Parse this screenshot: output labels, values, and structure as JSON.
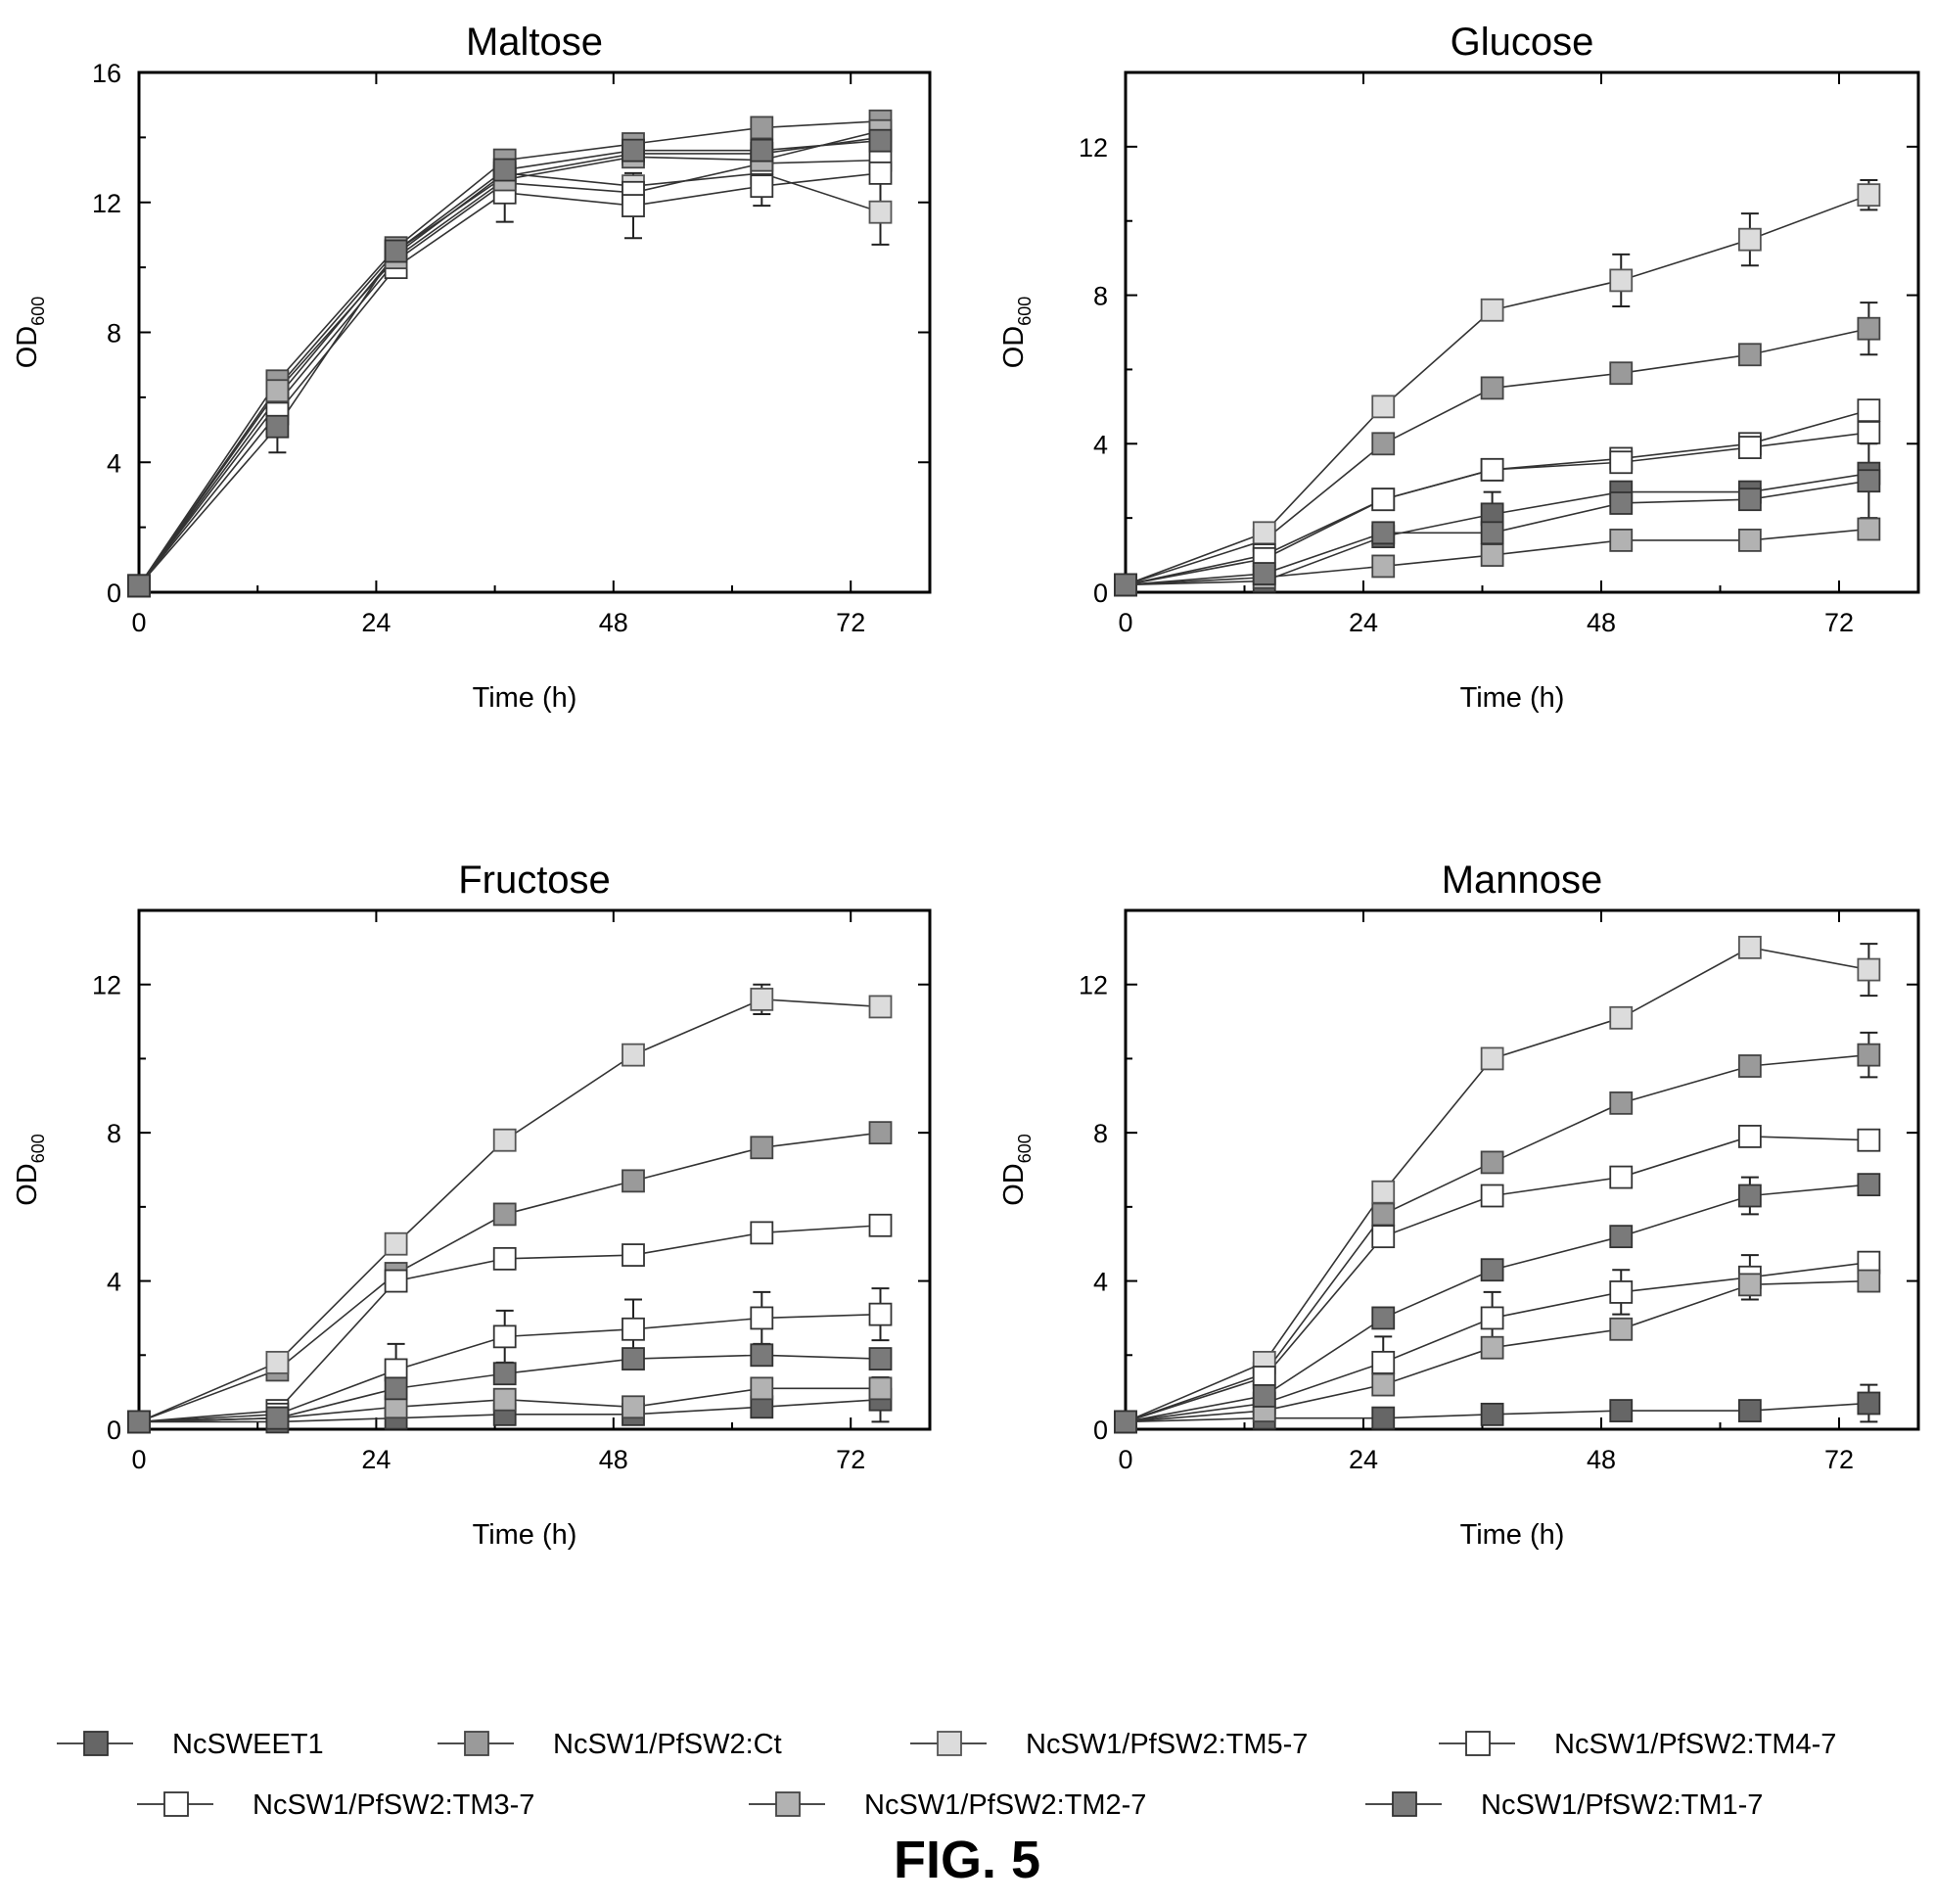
{
  "figure_label": "FIG. 5",
  "styles": {
    "NcSWEET1": {
      "fill": "#666666",
      "stroke": "#333333"
    },
    "NcSW1/PfSW2:Ct": {
      "fill": "#9a9a9a",
      "stroke": "#444444"
    },
    "NcSW1/PfSW2:TM5-7": {
      "fill": "#dcdcdc",
      "stroke": "#555555"
    },
    "NcSW1/PfSW2:TM4-7": {
      "fill": "#ffffff",
      "stroke": "#333333"
    },
    "NcSW1/PfSW2:TM3-7": {
      "fill": "#ffffff",
      "stroke": "#333333"
    },
    "NcSW1/PfSW2:TM2-7": {
      "fill": "#b2b2b2",
      "stroke": "#444444"
    },
    "NcSW1/PfSW2:TM1-7": {
      "fill": "#7a7a7a",
      "stroke": "#333333"
    }
  },
  "legend": {
    "row1": [
      "NcSWEET1",
      "NcSW1/PfSW2:Ct",
      "NcSW1/PfSW2:TM5-7",
      "NcSW1/PfSW2:TM4-7"
    ],
    "row2": [
      "NcSW1/PfSW2:TM3-7",
      "NcSW1/PfSW2:TM2-7",
      "NcSW1/PfSW2:TM1-7"
    ]
  },
  "chart_data": [
    {
      "type": "line",
      "title": "Maltose",
      "xlabel": "Time (h)",
      "ylabel": "OD",
      "ylabel_subscript": "600",
      "xlim": [
        0,
        80
      ],
      "ylim": [
        0,
        16
      ],
      "xticks": [
        0,
        24,
        48,
        72
      ],
      "yticks": [
        0,
        4,
        8,
        12,
        16
      ],
      "x": [
        0,
        14,
        26,
        37,
        50,
        63,
        75
      ],
      "series": [
        {
          "name": "NcSWEET1",
          "values": [
            0.2,
            6.3,
            10.5,
            12.8,
            13.5,
            13.5,
            14.0
          ]
        },
        {
          "name": "NcSW1/PfSW2:Ct",
          "values": [
            0.2,
            6.5,
            10.6,
            13.3,
            13.8,
            14.3,
            14.5
          ]
        },
        {
          "name": "NcSW1/PfSW2:TM5-7",
          "values": [
            0.2,
            6.0,
            10.4,
            12.9,
            12.5,
            12.9,
            11.7
          ]
        },
        {
          "name": "NcSW1/PfSW2:TM4-7",
          "values": [
            0.2,
            5.8,
            10.2,
            12.6,
            12.3,
            13.2,
            13.3
          ]
        },
        {
          "name": "NcSW1/PfSW2:TM3-7",
          "values": [
            0.2,
            5.5,
            10.0,
            12.3,
            11.9,
            12.5,
            12.9
          ]
        },
        {
          "name": "NcSW1/PfSW2:TM2-7",
          "values": [
            0.2,
            6.2,
            10.3,
            12.7,
            13.4,
            13.3,
            14.2
          ]
        },
        {
          "name": "NcSW1/PfSW2:TM1-7",
          "values": [
            0.2,
            5.1,
            10.5,
            13.0,
            13.6,
            13.6,
            13.9
          ]
        }
      ],
      "errors": [
        {
          "series": "NcSW1/PfSW2:TM5-7",
          "x": 75,
          "value": 11.7,
          "err": 1.0
        },
        {
          "series": "NcSW1/PfSW2:TM3-7",
          "x": 50,
          "value": 11.9,
          "err": 1.0
        },
        {
          "series": "NcSW1/PfSW2:TM3-7",
          "x": 37,
          "value": 12.3,
          "err": 0.9
        },
        {
          "series": "NcSW1/PfSW2:TM1-7",
          "x": 14,
          "value": 5.1,
          "err": 0.8
        },
        {
          "series": "NcSW1/PfSW2:TM3-7",
          "x": 63,
          "value": 12.5,
          "err": 0.6
        }
      ]
    },
    {
      "type": "line",
      "title": "Glucose",
      "xlabel": "Time (h)",
      "ylabel": "OD",
      "ylabel_subscript": "600",
      "xlim": [
        0,
        80
      ],
      "ylim": [
        0,
        14
      ],
      "xticks": [
        0,
        24,
        48,
        72
      ],
      "yticks": [
        0,
        4,
        8,
        12
      ],
      "x": [
        0,
        14,
        26,
        37,
        50,
        63,
        75
      ],
      "series": [
        {
          "name": "NcSWEET1",
          "values": [
            0.2,
            0.3,
            1.5,
            2.1,
            2.7,
            2.7,
            3.2
          ]
        },
        {
          "name": "NcSW1/PfSW2:Ct",
          "values": [
            0.2,
            1.4,
            4.0,
            5.5,
            5.9,
            6.4,
            7.1
          ]
        },
        {
          "name": "NcSW1/PfSW2:TM5-7",
          "values": [
            0.2,
            1.6,
            5.0,
            7.6,
            8.4,
            9.5,
            10.7
          ]
        },
        {
          "name": "NcSW1/PfSW2:TM4-7",
          "values": [
            0.2,
            1.0,
            2.5,
            3.3,
            3.6,
            4.0,
            4.9
          ]
        },
        {
          "name": "NcSW1/PfSW2:TM3-7",
          "values": [
            0.2,
            0.9,
            2.5,
            3.3,
            3.5,
            3.9,
            4.3
          ]
        },
        {
          "name": "NcSW1/PfSW2:TM2-7",
          "values": [
            0.2,
            0.4,
            0.7,
            1.0,
            1.4,
            1.4,
            1.7
          ]
        },
        {
          "name": "NcSW1/PfSW2:TM1-7",
          "values": [
            0.2,
            0.5,
            1.6,
            1.6,
            2.4,
            2.5,
            3.0
          ]
        }
      ],
      "errors": [
        {
          "series": "NcSW1/PfSW2:TM5-7",
          "x": 50,
          "value": 8.4,
          "err": 0.7
        },
        {
          "series": "NcSW1/PfSW2:TM5-7",
          "x": 63,
          "value": 9.5,
          "err": 0.7
        },
        {
          "series": "NcSW1/PfSW2:TM5-7",
          "x": 75,
          "value": 10.7,
          "err": 0.4
        },
        {
          "series": "NcSW1/PfSW2:Ct",
          "x": 75,
          "value": 7.1,
          "err": 0.7
        },
        {
          "series": "NcSWEET1",
          "x": 37,
          "value": 2.1,
          "err": 0.6
        },
        {
          "series": "NcSW1/PfSW2:TM1-7",
          "x": 75,
          "value": 3.0,
          "err": 1.0
        }
      ]
    },
    {
      "type": "line",
      "title": "Fructose",
      "xlabel": "Time (h)",
      "ylabel": "OD",
      "ylabel_subscript": "600",
      "xlim": [
        0,
        80
      ],
      "ylim": [
        0,
        14
      ],
      "xticks": [
        0,
        24,
        48,
        72
      ],
      "yticks": [
        0,
        4,
        8,
        12
      ],
      "x": [
        0,
        14,
        26,
        37,
        50,
        63,
        75
      ],
      "series": [
        {
          "name": "NcSWEET1",
          "values": [
            0.2,
            0.2,
            0.3,
            0.4,
            0.4,
            0.6,
            0.8
          ]
        },
        {
          "name": "NcSW1/PfSW2:Ct",
          "values": [
            0.2,
            1.6,
            4.2,
            5.8,
            6.7,
            7.6,
            8.0
          ]
        },
        {
          "name": "NcSW1/PfSW2:TM5-7",
          "values": [
            0.2,
            1.8,
            5.0,
            7.8,
            10.1,
            11.6,
            11.4
          ]
        },
        {
          "name": "NcSW1/PfSW2:TM4-7",
          "values": [
            0.2,
            0.5,
            4.0,
            4.6,
            4.7,
            5.3,
            5.5
          ]
        },
        {
          "name": "NcSW1/PfSW2:TM3-7",
          "values": [
            0.2,
            0.4,
            1.6,
            2.5,
            2.7,
            3.0,
            3.1
          ]
        },
        {
          "name": "NcSW1/PfSW2:TM2-7",
          "values": [
            0.2,
            0.3,
            0.6,
            0.8,
            0.6,
            1.1,
            1.1
          ]
        },
        {
          "name": "NcSW1/PfSW2:TM1-7",
          "values": [
            0.2,
            0.3,
            1.1,
            1.5,
            1.9,
            2.0,
            1.9
          ]
        }
      ],
      "errors": [
        {
          "series": "NcSW1/PfSW2:TM3-7",
          "x": 26,
          "value": 1.6,
          "err": 0.7
        },
        {
          "series": "NcSW1/PfSW2:TM3-7",
          "x": 37,
          "value": 2.5,
          "err": 0.7
        },
        {
          "series": "NcSW1/PfSW2:TM3-7",
          "x": 50,
          "value": 2.7,
          "err": 0.8
        },
        {
          "series": "NcSW1/PfSW2:TM3-7",
          "x": 63,
          "value": 3.0,
          "err": 0.7
        },
        {
          "series": "NcSW1/PfSW2:TM3-7",
          "x": 75,
          "value": 3.1,
          "err": 0.7
        },
        {
          "series": "NcSWEET1",
          "x": 75,
          "value": 0.8,
          "err": 0.6
        },
        {
          "series": "NcSW1/PfSW2:TM5-7",
          "x": 63,
          "value": 11.6,
          "err": 0.4
        }
      ]
    },
    {
      "type": "line",
      "title": "Mannose",
      "xlabel": "Time (h)",
      "ylabel": "OD",
      "ylabel_subscript": "600",
      "xlim": [
        0,
        80
      ],
      "ylim": [
        0,
        14
      ],
      "xticks": [
        0,
        24,
        48,
        72
      ],
      "yticks": [
        0,
        4,
        8,
        12
      ],
      "x": [
        0,
        14,
        26,
        37,
        50,
        63,
        75
      ],
      "series": [
        {
          "name": "NcSWEET1",
          "values": [
            0.2,
            0.3,
            0.3,
            0.4,
            0.5,
            0.5,
            0.7
          ]
        },
        {
          "name": "NcSW1/PfSW2:Ct",
          "values": [
            0.2,
            1.5,
            5.8,
            7.2,
            8.8,
            9.8,
            10.1
          ]
        },
        {
          "name": "NcSW1/PfSW2:TM5-7",
          "values": [
            0.2,
            1.8,
            6.4,
            10.0,
            11.1,
            13.0,
            12.4
          ]
        },
        {
          "name": "NcSW1/PfSW2:TM4-7",
          "values": [
            0.2,
            1.4,
            5.2,
            6.3,
            6.8,
            7.9,
            7.8
          ]
        },
        {
          "name": "NcSW1/PfSW2:TM3-7",
          "values": [
            0.2,
            0.7,
            1.8,
            3.0,
            3.7,
            4.1,
            4.5
          ]
        },
        {
          "name": "NcSW1/PfSW2:TM2-7",
          "values": [
            0.2,
            0.5,
            1.2,
            2.2,
            2.7,
            3.9,
            4.0
          ]
        },
        {
          "name": "NcSW1/PfSW2:TM1-7",
          "values": [
            0.2,
            0.9,
            3.0,
            4.3,
            5.2,
            6.3,
            6.6
          ]
        }
      ],
      "errors": [
        {
          "series": "NcSW1/PfSW2:TM5-7",
          "x": 75,
          "value": 12.4,
          "err": 0.7
        },
        {
          "series": "NcSW1/PfSW2:Ct",
          "x": 75,
          "value": 10.1,
          "err": 0.6
        },
        {
          "series": "NcSW1/PfSW2:TM3-7",
          "x": 26,
          "value": 1.8,
          "err": 0.7
        },
        {
          "series": "NcSW1/PfSW2:TM3-7",
          "x": 37,
          "value": 3.0,
          "err": 0.7
        },
        {
          "series": "NcSW1/PfSW2:TM3-7",
          "x": 50,
          "value": 3.7,
          "err": 0.6
        },
        {
          "series": "NcSW1/PfSW2:TM3-7",
          "x": 63,
          "value": 4.1,
          "err": 0.6
        },
        {
          "series": "NcSWEET1",
          "x": 75,
          "value": 0.7,
          "err": 0.5
        },
        {
          "series": "NcSW1/PfSW2:TM1-7",
          "x": 63,
          "value": 6.3,
          "err": 0.5
        }
      ]
    }
  ]
}
